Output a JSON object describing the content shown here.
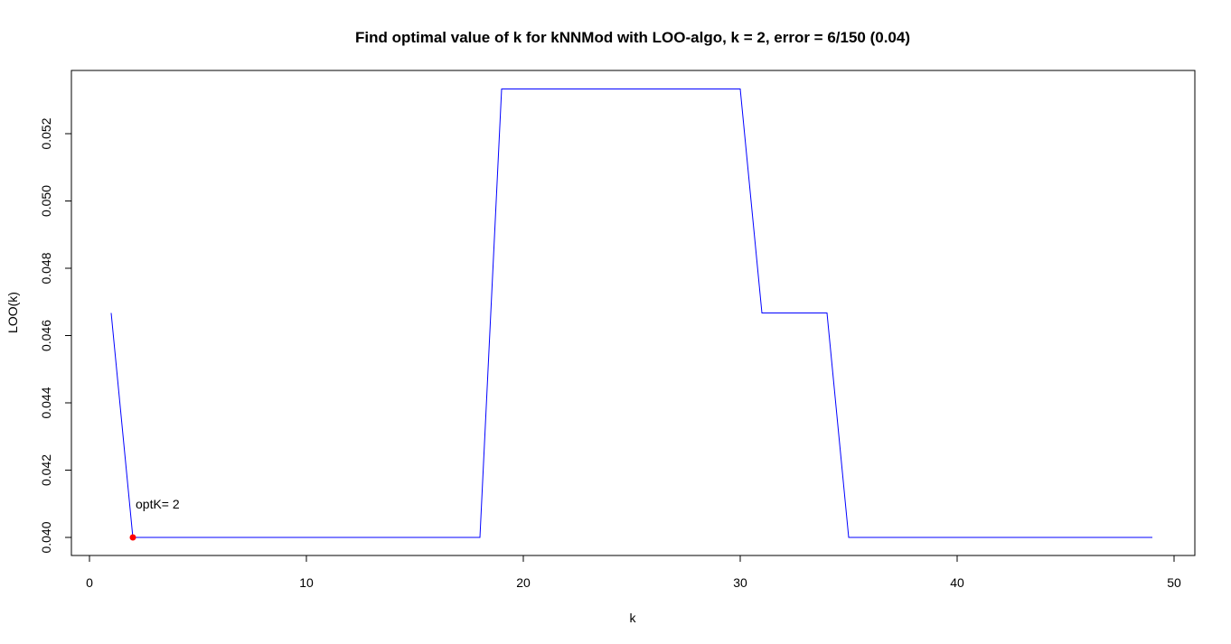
{
  "chart_data": {
    "type": "line",
    "title": "Find optimal value of k for kNNMod with LOO-algo, k = 2, error = 6/150 (0.04)",
    "xlabel": "k",
    "ylabel": "LOO(k)",
    "xlim": [
      0,
      50
    ],
    "ylim": [
      0.0395,
      0.0534
    ],
    "x_ticks": [
      0,
      10,
      20,
      30,
      40,
      50
    ],
    "y_ticks": [
      0.04,
      0.042,
      0.044,
      0.046,
      0.048,
      0.05,
      0.052
    ],
    "y_tick_labels": [
      "0.040",
      "0.042",
      "0.044",
      "0.046",
      "0.048",
      "0.050",
      "0.052"
    ],
    "grid": false,
    "series": [
      {
        "color": "#0000ff",
        "x": [
          1,
          2,
          3,
          4,
          5,
          6,
          7,
          8,
          9,
          10,
          11,
          12,
          13,
          14,
          15,
          16,
          17,
          18,
          19,
          20,
          21,
          22,
          23,
          24,
          25,
          26,
          27,
          28,
          29,
          30,
          31,
          32,
          33,
          34,
          35,
          36,
          37,
          38,
          39,
          40,
          41,
          42,
          43,
          44,
          45,
          46,
          47,
          48,
          49
        ],
        "y": [
          0.04667,
          0.04,
          0.04,
          0.04,
          0.04,
          0.04,
          0.04,
          0.04,
          0.04,
          0.04,
          0.04,
          0.04,
          0.04,
          0.04,
          0.04,
          0.04,
          0.04,
          0.04,
          0.05333,
          0.05333,
          0.05333,
          0.05333,
          0.05333,
          0.05333,
          0.05333,
          0.05333,
          0.05333,
          0.05333,
          0.05333,
          0.05333,
          0.04667,
          0.04667,
          0.04667,
          0.04667,
          0.04,
          0.04,
          0.04,
          0.04,
          0.04,
          0.04,
          0.04,
          0.04,
          0.04,
          0.04,
          0.04,
          0.04,
          0.04,
          0.04,
          0.04
        ]
      }
    ],
    "highlight_point": {
      "x": 2,
      "y": 0.04,
      "color": "#ff0000"
    },
    "annotation": {
      "text": "optK= 2",
      "x": 2,
      "y": 0.04
    }
  }
}
